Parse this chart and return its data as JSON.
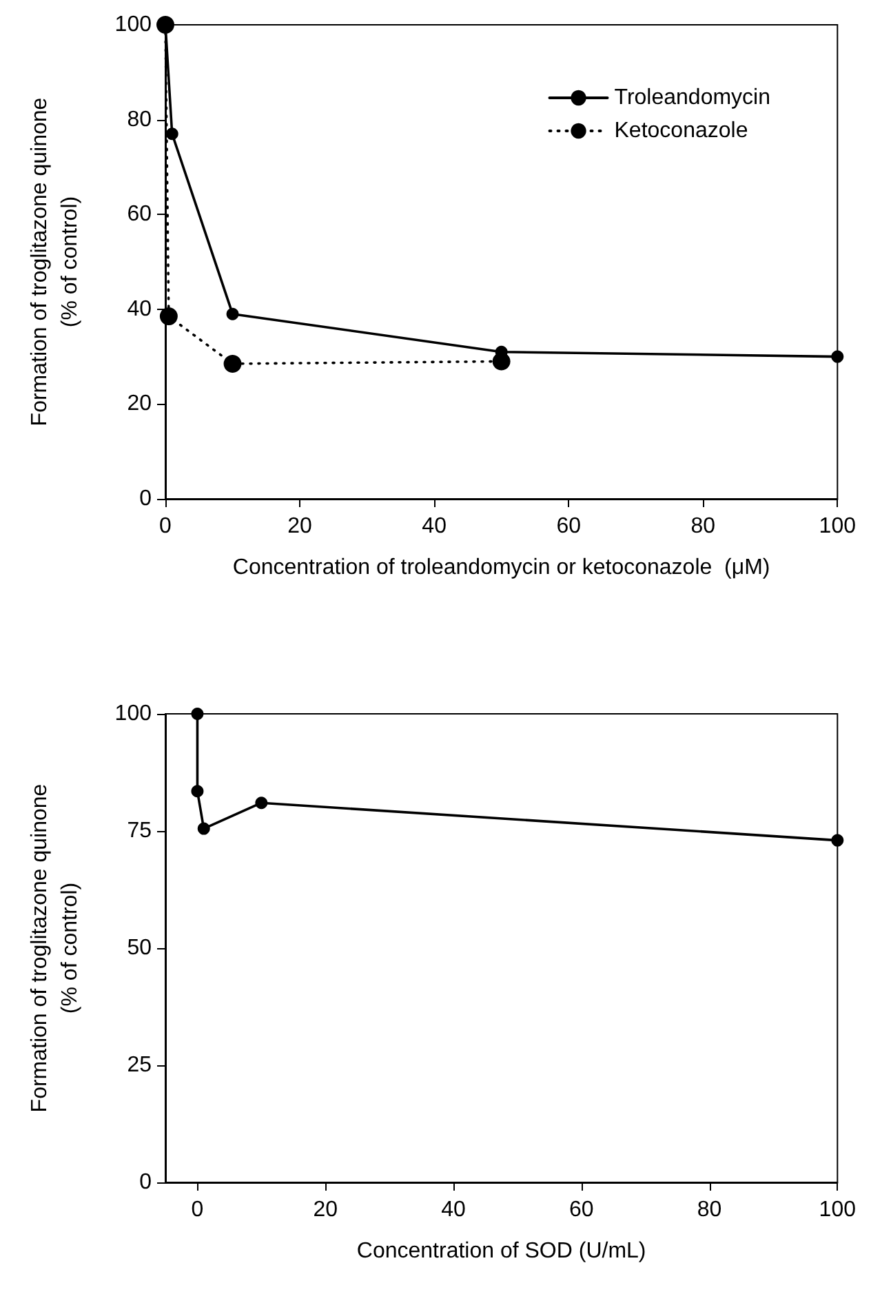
{
  "chart_data": [
    {
      "type": "line",
      "xlabel": "Concentration of troleandomycin or ketoconazole  (μM)",
      "ylabel": "Formation of troglitazone quinone\n(% of control)",
      "xlim": [
        0,
        100
      ],
      "xticks": [
        0,
        20,
        40,
        60,
        80,
        100
      ],
      "ylim": [
        0,
        100
      ],
      "yticks": [
        0,
        20,
        40,
        60,
        80,
        100
      ],
      "grid": false,
      "legend": "top right",
      "marker": "circle",
      "series": [
        {
          "name": "Troleandomycin",
          "color": "#000000",
          "line_style": "solid",
          "x": [
            0,
            1,
            10,
            50,
            100
          ],
          "values": [
            100,
            77,
            39,
            31,
            30
          ]
        },
        {
          "name": "Ketoconazole",
          "color": "#000000",
          "line_style": "dotted",
          "x": [
            0,
            0.5,
            10,
            50
          ],
          "values": [
            100,
            38.5,
            28.5,
            29
          ]
        }
      ]
    },
    {
      "type": "line",
      "xlabel": "Concentration of SOD (U/mL)",
      "ylabel": "Formation of troglitazone quinone\n(% of control)",
      "xlim": [
        -5,
        100
      ],
      "xticks": [
        0,
        20,
        40,
        60,
        80,
        100
      ],
      "ylim": [
        0,
        100
      ],
      "yticks": [
        0,
        25,
        50,
        75,
        100
      ],
      "grid": false,
      "legend": false,
      "marker": "circle",
      "series": [
        {
          "color": "#000000",
          "line_style": "solid",
          "x": [
            0,
            0,
            1,
            10,
            100
          ],
          "values": [
            100,
            83.5,
            75.5,
            81,
            73
          ]
        }
      ]
    }
  ]
}
